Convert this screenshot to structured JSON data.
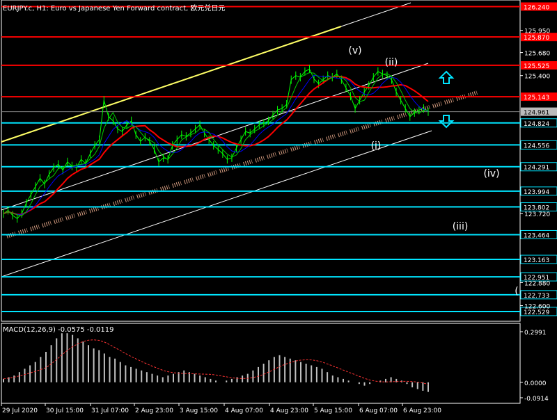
{
  "header": {
    "title": "EURJPY.c, H1: Euro vs Japanese Yen Forward contract, 欧元兑日元"
  },
  "macd": {
    "label": "MACD(12,26,9) -0.0575 -0.0119",
    "axis_ticks": [
      "0.2991",
      "0.0000",
      "-0.0914"
    ],
    "axis_values": [
      0.2991,
      0.0,
      -0.0914
    ]
  },
  "colors": {
    "background": "#000000",
    "candle": "#00ff00",
    "resistance_line": "#ff0000",
    "support_line": "#00e5ff",
    "channel_line": "#ffffff",
    "channel_upper_segment": "#ffff66",
    "ma_red": "#ff0000",
    "ma_blue": "#0000ff",
    "ma_green": "#00cc00",
    "cloud_dots": "#ffbb99",
    "macd_histogram": "#c0c0c0",
    "macd_signal": "#ff3333",
    "arrow_up": "#00e5ff",
    "arrow_down": "#00e5ff"
  },
  "chart_data": {
    "type": "line",
    "title": "EURJPY.c, H1",
    "price_axis": {
      "range": [
        122.41,
        126.32
      ],
      "tick_labels": [
        "125.950",
        "125.680",
        "125.400",
        "124.961",
        "124.824",
        "124.556",
        "124.291",
        "123.994",
        "123.802",
        "123.720",
        "123.464",
        "123.163",
        "122.951",
        "122.880",
        "122.733",
        "122.600",
        "122.529"
      ]
    },
    "current_price": 124.961,
    "horizontal_levels": {
      "resistance": [
        {
          "value": 126.24,
          "label": "126.240"
        },
        {
          "value": 125.87,
          "label": "125.870"
        },
        {
          "value": 125.525,
          "label": "125.525"
        },
        {
          "value": 125.143,
          "label": "125.143"
        }
      ],
      "support": [
        {
          "value": 124.824,
          "label": "124.824"
        },
        {
          "value": 124.556,
          "label": "124.556"
        },
        {
          "value": 124.291,
          "label": "124.291"
        },
        {
          "value": 123.994,
          "label": "123.994"
        },
        {
          "value": 123.802,
          "label": "123.802"
        },
        {
          "value": 123.464,
          "label": "123.464"
        },
        {
          "value": 123.163,
          "label": "123.163"
        },
        {
          "value": 122.951,
          "label": "122.951"
        },
        {
          "value": 122.733,
          "label": "122.733"
        },
        {
          "value": 122.529,
          "label": "122.529"
        }
      ]
    },
    "time_axis": [
      "29 Jul 2020",
      "30 Jul 15:00",
      "31 Jul 07:00",
      "2 Aug 23:00",
      "3 Aug 15:00",
      "4 Aug 07:00",
      "4 Aug 23:00",
      "5 Aug 15:00",
      "6 Aug 07:00",
      "6 Aug 23:00"
    ],
    "wave_labels": [
      "(v)",
      "(ii)",
      "(i)",
      "(iv)",
      "(iii)",
      "("
    ],
    "close_series": [
      123.72,
      123.76,
      123.7,
      123.66,
      123.72,
      123.85,
      123.95,
      124.05,
      124.15,
      124.08,
      124.2,
      124.28,
      124.32,
      124.25,
      124.35,
      124.3,
      124.28,
      124.38,
      124.33,
      124.45,
      124.55,
      124.62,
      125.1,
      124.9,
      124.85,
      124.75,
      124.72,
      124.8,
      124.85,
      124.68,
      124.6,
      124.65,
      124.6,
      124.5,
      124.35,
      124.4,
      124.38,
      124.55,
      124.62,
      124.68,
      124.66,
      124.7,
      124.75,
      124.8,
      124.7,
      124.62,
      124.55,
      124.5,
      124.45,
      124.38,
      124.4,
      124.52,
      124.62,
      124.72,
      124.7,
      124.75,
      124.8,
      124.82,
      124.85,
      124.92,
      124.98,
      125.0,
      125.05,
      125.35,
      125.4,
      125.38,
      125.45,
      125.48,
      125.36,
      125.3,
      125.35,
      125.4,
      125.38,
      125.42,
      125.35,
      125.25,
      125.15,
      125.0,
      125.1,
      125.2,
      125.28,
      125.38,
      125.45,
      125.42,
      125.4,
      125.35,
      125.2,
      125.1,
      125.0,
      124.9,
      124.95,
      124.98,
      125.0,
      124.96
    ],
    "macd_values": [
      0.02,
      0.03,
      0.04,
      0.06,
      0.08,
      0.1,
      0.12,
      0.15,
      0.18,
      0.22,
      0.26,
      0.29,
      0.29,
      0.28,
      0.26,
      0.24,
      0.22,
      0.2,
      0.19,
      0.17,
      0.15,
      0.14,
      0.12,
      0.1,
      0.09,
      0.08,
      0.07,
      0.06,
      0.05,
      0.04,
      0.03,
      0.04,
      0.05,
      0.06,
      0.07,
      0.06,
      0.05,
      0.04,
      0.03,
      0.02,
      0.01,
      0.0,
      0.01,
      0.02,
      0.03,
      0.04,
      0.05,
      0.07,
      0.09,
      0.11,
      0.13,
      0.15,
      0.16,
      0.15,
      0.14,
      0.13,
      0.12,
      0.11,
      0.1,
      0.09,
      0.08,
      0.06,
      0.04,
      0.03,
      0.02,
      0.01,
      0.0,
      -0.01,
      -0.02,
      -0.01,
      0.0,
      0.01,
      0.02,
      0.03,
      0.02,
      0.01,
      -0.01,
      -0.03,
      -0.04,
      -0.05,
      -0.057
    ]
  }
}
